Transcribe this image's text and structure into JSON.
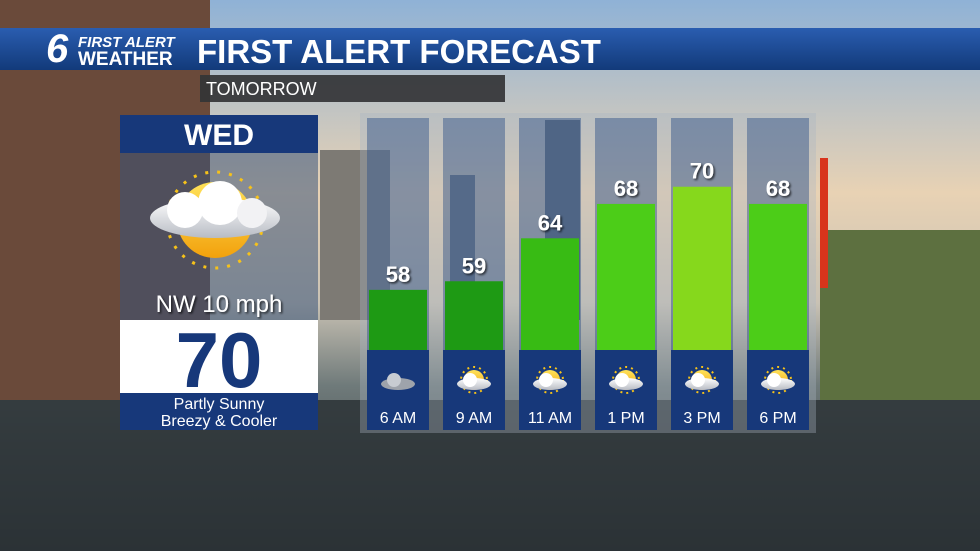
{
  "header": {
    "logo_number": "6",
    "logo_line1": "FIRST ALERT",
    "logo_line2": "WEATHER",
    "title": "FIRST ALERT FORECAST",
    "subtitle": "TOMORROW"
  },
  "day": {
    "name": "WED",
    "wind": "NW 10 mph",
    "high": 70,
    "condition_line1": "Partly Sunny",
    "condition_line2": "Breezy & Cooler"
  },
  "chart_data": {
    "type": "bar",
    "categories": [
      "6 AM",
      "9 AM",
      "11 AM",
      "1 PM",
      "3 PM",
      "6 PM"
    ],
    "values": [
      58,
      59,
      64,
      68,
      70,
      68
    ],
    "colors": [
      "#1e9a14",
      "#1e9a14",
      "#38bb14",
      "#4ccd18",
      "#86d81c",
      "#4ccd18"
    ],
    "ylim": [
      51,
      78
    ]
  }
}
